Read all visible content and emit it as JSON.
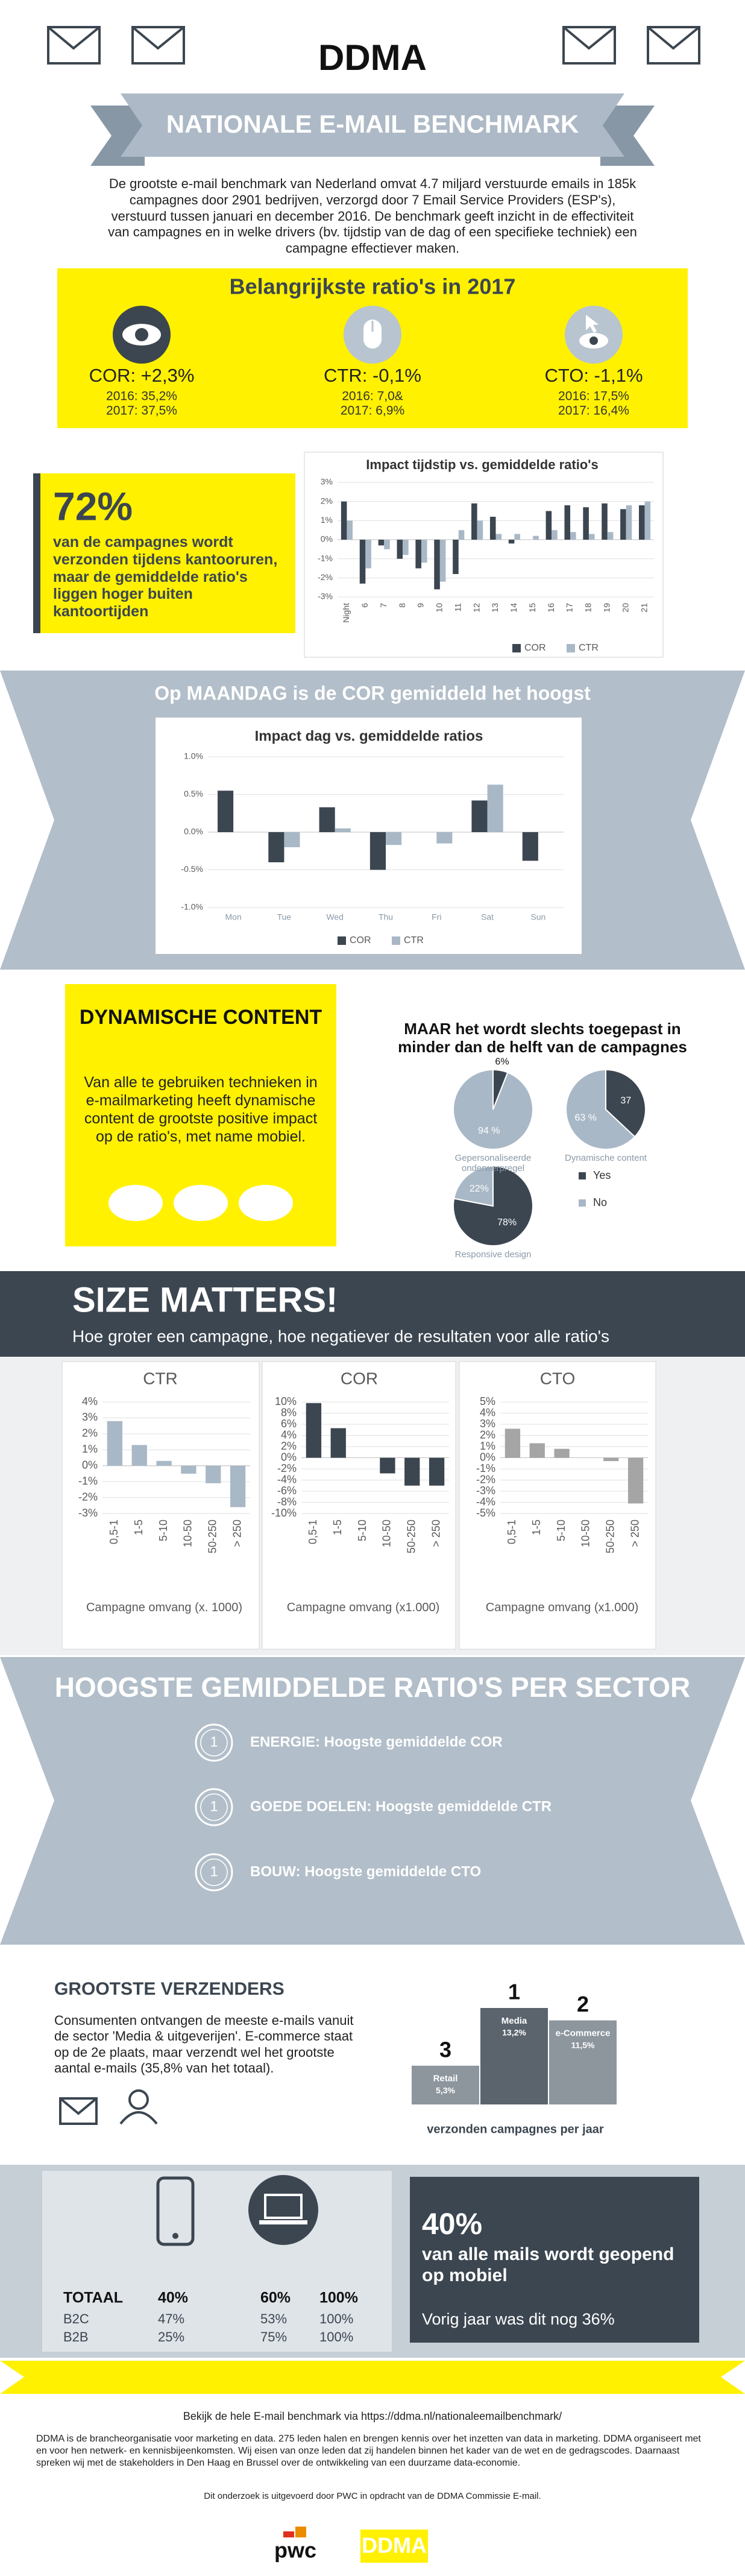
{
  "header": {
    "brand": "DDMA",
    "banner": "NATIONALE E-MAIL BENCHMARK",
    "intro": "De grootste e-mail benchmark van Nederland omvat 4.7 miljard verstuurde emails in 185k campagnes door 2901 bedrijven, verzorgd door 7 Email Service Providers (ESP's), verstuurd tussen januari en december 2016. De benchmark geeft inzicht in de effectiviteit van campagnes en in welke drivers (bv. tijdstip van de dag of een specifieke techniek) een campagne effectiever maken."
  },
  "ratios": {
    "title": "Belangrijkste ratio's in 2017",
    "items": [
      {
        "headline": "COR: +2,3%",
        "lines": [
          "2016: 35,2%",
          "2017: 37,5%"
        ]
      },
      {
        "headline": "CTR: -0,1%",
        "lines": [
          "2016: 7,0&",
          "2017: 6,9%"
        ]
      },
      {
        "headline": "CTO: -1,1%",
        "lines": [
          "2016: 17,5%",
          "2017: 16,4%"
        ]
      }
    ]
  },
  "office_hours": {
    "big": "72%",
    "text": "van de campagnes wordt verzonden tijdens kantooruren, maar de gemiddelde ratio's liggen hoger buiten kantoortijden"
  },
  "monday": {
    "title": "Op MAANDAG is de COR gemiddeld het hoogst"
  },
  "dynamic": {
    "title": "DYNAMISCHE CONTENT",
    "text": "Van alle te gebruiken technieken in e-mailmarketing heeft dynamische content de grootste positive impact op de ratio's, met name mobiel."
  },
  "size": {
    "title": "SIZE MATTERS!",
    "subtitle": "Hoe groter een campagne, hoe negatiever de resultaten voor alle ratio's"
  },
  "sectors": {
    "title": "HOOGSTE GEMIDDELDE RATIO'S PER SECTOR",
    "items": [
      {
        "rank": "1",
        "text": "ENERGIE: Hoogste gemiddelde COR"
      },
      {
        "rank": "1",
        "text": "GOEDE DOELEN: Hoogste gemiddelde CTR"
      },
      {
        "rank": "1",
        "text": "BOUW: Hoogste gemiddelde CTO"
      }
    ]
  },
  "senders": {
    "title": "GROOTSTE VERZENDERS",
    "text": "Consumenten ontvangen de meeste e-mails vanuit de sector 'Media & uitgeverijen'. E-commerce staat op de 2e plaats, maar verzendt wel het grootste aantal e-mails (35,8% van het totaal)."
  },
  "mobile": {
    "table": {
      "rows": [
        [
          "TOTAAL",
          "40%",
          "60%",
          "100%"
        ],
        [
          "B2C",
          "47%",
          "53%",
          "100%"
        ],
        [
          "B2B",
          "25%",
          "75%",
          "100%"
        ]
      ]
    },
    "big": "40%",
    "text": "van alle mails wordt geopend op mobiel",
    "note": "Vorig jaar was dit nog 36%"
  },
  "footer": {
    "link": "Bekijk de hele E-mail benchmark via https://ddma.nl/nationaleemailbenchmark/",
    "text": "DDMA is de brancheorganisatie voor marketing en data. 275 leden halen en brengen kennis over het inzetten van data in marketing. DDMA organiseert met en voor hen netwerk- en kennisbijeenkomsten. Wij eisen van onze leden dat zij handelen binnen het kader van de wet en de gedragscodes. Daarnaast spreken wij met de stakeholders in Den Haag en Brussel over de ontwikkeling van een duurzame data-economie.",
    "credit": "Dit onderzoek is uitgevoerd door PWC in opdracht van de DDMA Commissie E-mail.",
    "logos": [
      "pwc",
      "DDMA"
    ]
  },
  "chart_data": [
    {
      "type": "bar",
      "title": "Impact tijdstip vs. gemiddelde ratio's",
      "categories": [
        "Night",
        "6",
        "7",
        "8",
        "9",
        "10",
        "11",
        "12",
        "13",
        "14",
        "15",
        "16",
        "17",
        "18",
        "19",
        "20",
        "21"
      ],
      "series": [
        {
          "name": "COR",
          "color": "#3c4650",
          "values": [
            2.0,
            -2.3,
            -0.3,
            -1.0,
            -1.5,
            -2.6,
            -1.8,
            1.9,
            1.2,
            -0.2,
            0.0,
            1.5,
            1.8,
            1.7,
            1.9,
            1.6,
            1.8
          ]
        },
        {
          "name": "CTR",
          "color": "#a9b8c6",
          "values": [
            1.0,
            -1.5,
            -0.5,
            -0.8,
            -1.2,
            -2.2,
            0.5,
            1.0,
            0.3,
            0.3,
            0.2,
            0.5,
            0.4,
            0.3,
            0.4,
            1.8,
            2.0
          ]
        }
      ],
      "ylim": [
        -3,
        3
      ],
      "yticks": [
        {
          "value": -3,
          "label": "-3%"
        },
        {
          "value": -2,
          "label": "-2%"
        },
        {
          "value": -1,
          "label": "-1%"
        },
        {
          "value": 0,
          "label": "0%"
        },
        {
          "value": 1,
          "label": "1%"
        },
        {
          "value": 2,
          "label": "2%"
        },
        {
          "value": 3,
          "label": "3%"
        }
      ],
      "grid": true
    },
    {
      "type": "bar",
      "title": "Impact dag vs. gemiddelde ratios",
      "categories": [
        "Mon",
        "Tue",
        "Wed",
        "Thu",
        "Fri",
        "Sat",
        "Sun"
      ],
      "series": [
        {
          "name": "COR",
          "color": "#3c4650",
          "values": [
            0.55,
            -0.4,
            0.33,
            -0.5,
            0.0,
            0.42,
            -0.38
          ]
        },
        {
          "name": "CTR",
          "color": "#a9b8c6",
          "values": [
            0.0,
            -0.2,
            0.05,
            -0.17,
            -0.15,
            0.63,
            0.0
          ]
        }
      ],
      "ylim": [
        -1,
        1
      ],
      "yticks": [
        {
          "value": -1,
          "label": "-1.0%"
        },
        {
          "value": -0.5,
          "label": "-0.5%"
        },
        {
          "value": 0,
          "label": "0.0%"
        },
        {
          "value": 0.5,
          "label": "0.5%"
        },
        {
          "value": 1,
          "label": "1.0%"
        }
      ],
      "grid": true
    },
    {
      "type": "pie",
      "title": "MAAR het wordt slechts toegepast in minder dan de helft van de campagnes",
      "categories": [
        "Yes",
        "No"
      ],
      "colors": [
        "#3c4650",
        "#a9b8c6"
      ],
      "pies": [
        {
          "label": "Gepersonaliseerde onderwerpregel",
          "values": [
            6,
            94
          ],
          "value_labels": [
            "6%",
            "94 %"
          ]
        },
        {
          "label": "Dynamische content",
          "values": [
            37,
            63
          ],
          "value_labels": [
            "37",
            "63 %"
          ]
        },
        {
          "label": "Responsive design",
          "values": [
            78,
            22
          ],
          "value_labels": [
            "78%",
            "22%"
          ]
        }
      ]
    },
    {
      "type": "bar",
      "title": "CTR",
      "categories": [
        "0,5-1",
        "1-5",
        "5-10",
        "10-50",
        "50-250",
        "> 250"
      ],
      "values": [
        2.8,
        1.3,
        0.3,
        -0.5,
        -1.1,
        -2.6
      ],
      "color": "#a9b8c6",
      "ylim": [
        -3,
        4
      ],
      "yticks": [
        {
          "value": -3,
          "label": "-3%"
        },
        {
          "value": -2,
          "label": "-2%"
        },
        {
          "value": -1,
          "label": "-1%"
        },
        {
          "value": 0,
          "label": "0%"
        },
        {
          "value": 1,
          "label": "1%"
        },
        {
          "value": 2,
          "label": "2%"
        },
        {
          "value": 3,
          "label": "3%"
        },
        {
          "value": 4,
          "label": "4%"
        }
      ],
      "grid": true,
      "x_label": "Campagne omvang (x. 1000)"
    },
    {
      "type": "bar",
      "title": "COR",
      "categories": [
        "0,5-1",
        "1-5",
        "5-10",
        "10-50",
        "50-250",
        "> 250"
      ],
      "values": [
        9.8,
        5.3,
        0.0,
        -2.8,
        -5.0,
        -5.0
      ],
      "color": "#3c4650",
      "ylim": [
        -10,
        10
      ],
      "yticks": [
        {
          "value": -10,
          "label": "-10%"
        },
        {
          "value": -8,
          "label": "-8%"
        },
        {
          "value": -6,
          "label": "-6%"
        },
        {
          "value": -4,
          "label": "-4%"
        },
        {
          "value": -2,
          "label": "-2%"
        },
        {
          "value": 0,
          "label": "0%"
        },
        {
          "value": 2,
          "label": "2%"
        },
        {
          "value": 4,
          "label": "4%"
        },
        {
          "value": 6,
          "label": "6%"
        },
        {
          "value": 8,
          "label": "8%"
        },
        {
          "value": 10,
          "label": "10%"
        }
      ],
      "grid": true,
      "x_label": "Campagne omvang (x1.000)"
    },
    {
      "type": "bar",
      "title": "CTO",
      "categories": [
        "0,5-1",
        "1-5",
        "5-10",
        "10-50",
        "50-250",
        "> 250"
      ],
      "values": [
        2.6,
        1.3,
        0.8,
        0.0,
        -0.3,
        -4.1
      ],
      "color": "#a5a5a5",
      "ylim": [
        -5,
        5
      ],
      "yticks": [
        {
          "value": -5,
          "label": "-5%"
        },
        {
          "value": -4,
          "label": "-4%"
        },
        {
          "value": -3,
          "label": "-3%"
        },
        {
          "value": -2,
          "label": "-2%"
        },
        {
          "value": -1,
          "label": "-1%"
        },
        {
          "value": 0,
          "label": "0%"
        },
        {
          "value": 1,
          "label": "1%"
        },
        {
          "value": 2,
          "label": "2%"
        },
        {
          "value": 3,
          "label": "3%"
        },
        {
          "value": 4,
          "label": "4%"
        },
        {
          "value": 5,
          "label": "5%"
        }
      ],
      "grid": true,
      "x_label": "Campagne omvang (x1.000)"
    },
    {
      "type": "bar",
      "categories": [
        "Retail",
        "Media",
        "e-Commerce"
      ],
      "values": [
        5.3,
        13.2,
        11.5
      ],
      "value_labels": [
        "5,3%",
        "13,2%",
        "11,5%"
      ],
      "ranks": [
        "3",
        "1",
        "2"
      ],
      "colors": [
        "#8d959d",
        "#5b646d",
        "#8d959d"
      ],
      "x_label": "verzonden campagnes per jaar"
    }
  ]
}
